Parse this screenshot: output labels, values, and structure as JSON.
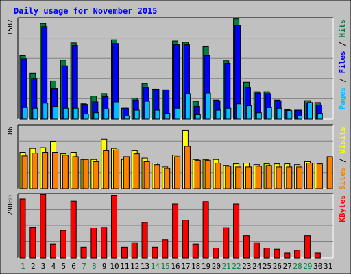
{
  "chart_data": {
    "type": "bar",
    "title": "Daily usage for November 2015",
    "categories": [
      "1",
      "2",
      "3",
      "4",
      "5",
      "6",
      "7",
      "8",
      "9",
      "10",
      "11",
      "12",
      "13",
      "14",
      "15",
      "16",
      "17",
      "18",
      "19",
      "20",
      "21",
      "22",
      "23",
      "24",
      "25",
      "26",
      "27",
      "28",
      "29",
      "30",
      "31"
    ],
    "weekend_days": [
      "1",
      "7",
      "8",
      "14",
      "15",
      "21",
      "22",
      "28",
      "29"
    ],
    "panels": [
      {
        "id": "top",
        "max_label": "1587",
        "ylim": [
          0,
          1587
        ],
        "legend": [
          {
            "text": "Pages",
            "color": "#00bfff"
          },
          {
            "text": " / ",
            "color": "#000000"
          },
          {
            "text": "Files",
            "color": "#0000ff"
          },
          {
            "text": " / ",
            "color": "#000000"
          },
          {
            "text": "Hits",
            "color": "#008040"
          }
        ],
        "series": [
          {
            "name": "Hits",
            "color": "#008040",
            "values": [
              1000,
              720,
              1510,
              600,
              930,
              1200,
              240,
              360,
              400,
              1250,
              170,
              330,
              560,
              470,
              460,
              1230,
              1210,
              280,
              1150,
              300,
              920,
              1580,
              580,
              430,
              430,
              300,
              150,
              140,
              290,
              260,
              0
            ]
          },
          {
            "name": "Files",
            "color": "#0000ff",
            "values": [
              950,
              640,
              1460,
              480,
              840,
              1160,
              230,
              270,
              350,
              1190,
              170,
              300,
              500,
              470,
              460,
              1170,
              1170,
              200,
              1000,
              290,
              880,
              1480,
              500,
              410,
              400,
              290,
              140,
              140,
              250,
              220,
              0
            ]
          },
          {
            "name": "Pages",
            "color": "#00bfff",
            "values": [
              180,
              170,
              250,
              200,
              170,
              170,
              80,
              100,
              160,
              270,
              50,
              140,
              280,
              140,
              90,
              170,
              400,
              70,
              410,
              140,
              170,
              240,
              210,
              100,
              180,
              170,
              130,
              50,
              260,
              90,
              0
            ]
          }
        ]
      },
      {
        "id": "middle",
        "max_label": "86",
        "ylim": [
          0,
          86
        ],
        "legend": [
          {
            "text": "Sites",
            "color": "#ff8000"
          },
          {
            "text": " / ",
            "color": "#000000"
          },
          {
            "text": "Visits",
            "color": "#ffff00"
          }
        ],
        "series": [
          {
            "name": "Visits",
            "color": "#ffff00",
            "values": [
              50,
              55,
              56,
              65,
              48,
              50,
              40,
              40,
              68,
              55,
              40,
              52,
              42,
              35,
              30,
              46,
              80,
              40,
              40,
              40,
              32,
              34,
              35,
              33,
              34,
              34,
              34,
              33,
              37,
              35,
              0
            ]
          },
          {
            "name": "Sites",
            "color": "#ff8000",
            "values": [
              45,
              49,
              50,
              50,
              46,
              44,
              40,
              37,
              52,
              53,
              44,
              48,
              37,
              33,
              28,
              44,
              58,
              39,
              39,
              35,
              31,
              30,
              30,
              31,
              32,
              30,
              30,
              30,
              35,
              34,
              44
            ]
          }
        ]
      },
      {
        "id": "bottom",
        "max_label": "29080",
        "ylim": [
          0,
          29080
        ],
        "legend": [
          {
            "text": "KBytes",
            "color": "#ff0000"
          }
        ],
        "series": [
          {
            "name": "KBytes",
            "color": "#ff0000",
            "values": [
              26900,
              13900,
              29000,
              6200,
              12500,
              25900,
              4900,
              13600,
              13800,
              28600,
              4900,
              6800,
              16300,
              4900,
              8200,
              24700,
              17300,
              6200,
              25700,
              4500,
              13700,
              24700,
              10100,
              6800,
              4500,
              4000,
              2200,
              3500,
              10100,
              2200,
              0
            ]
          }
        ]
      }
    ]
  }
}
